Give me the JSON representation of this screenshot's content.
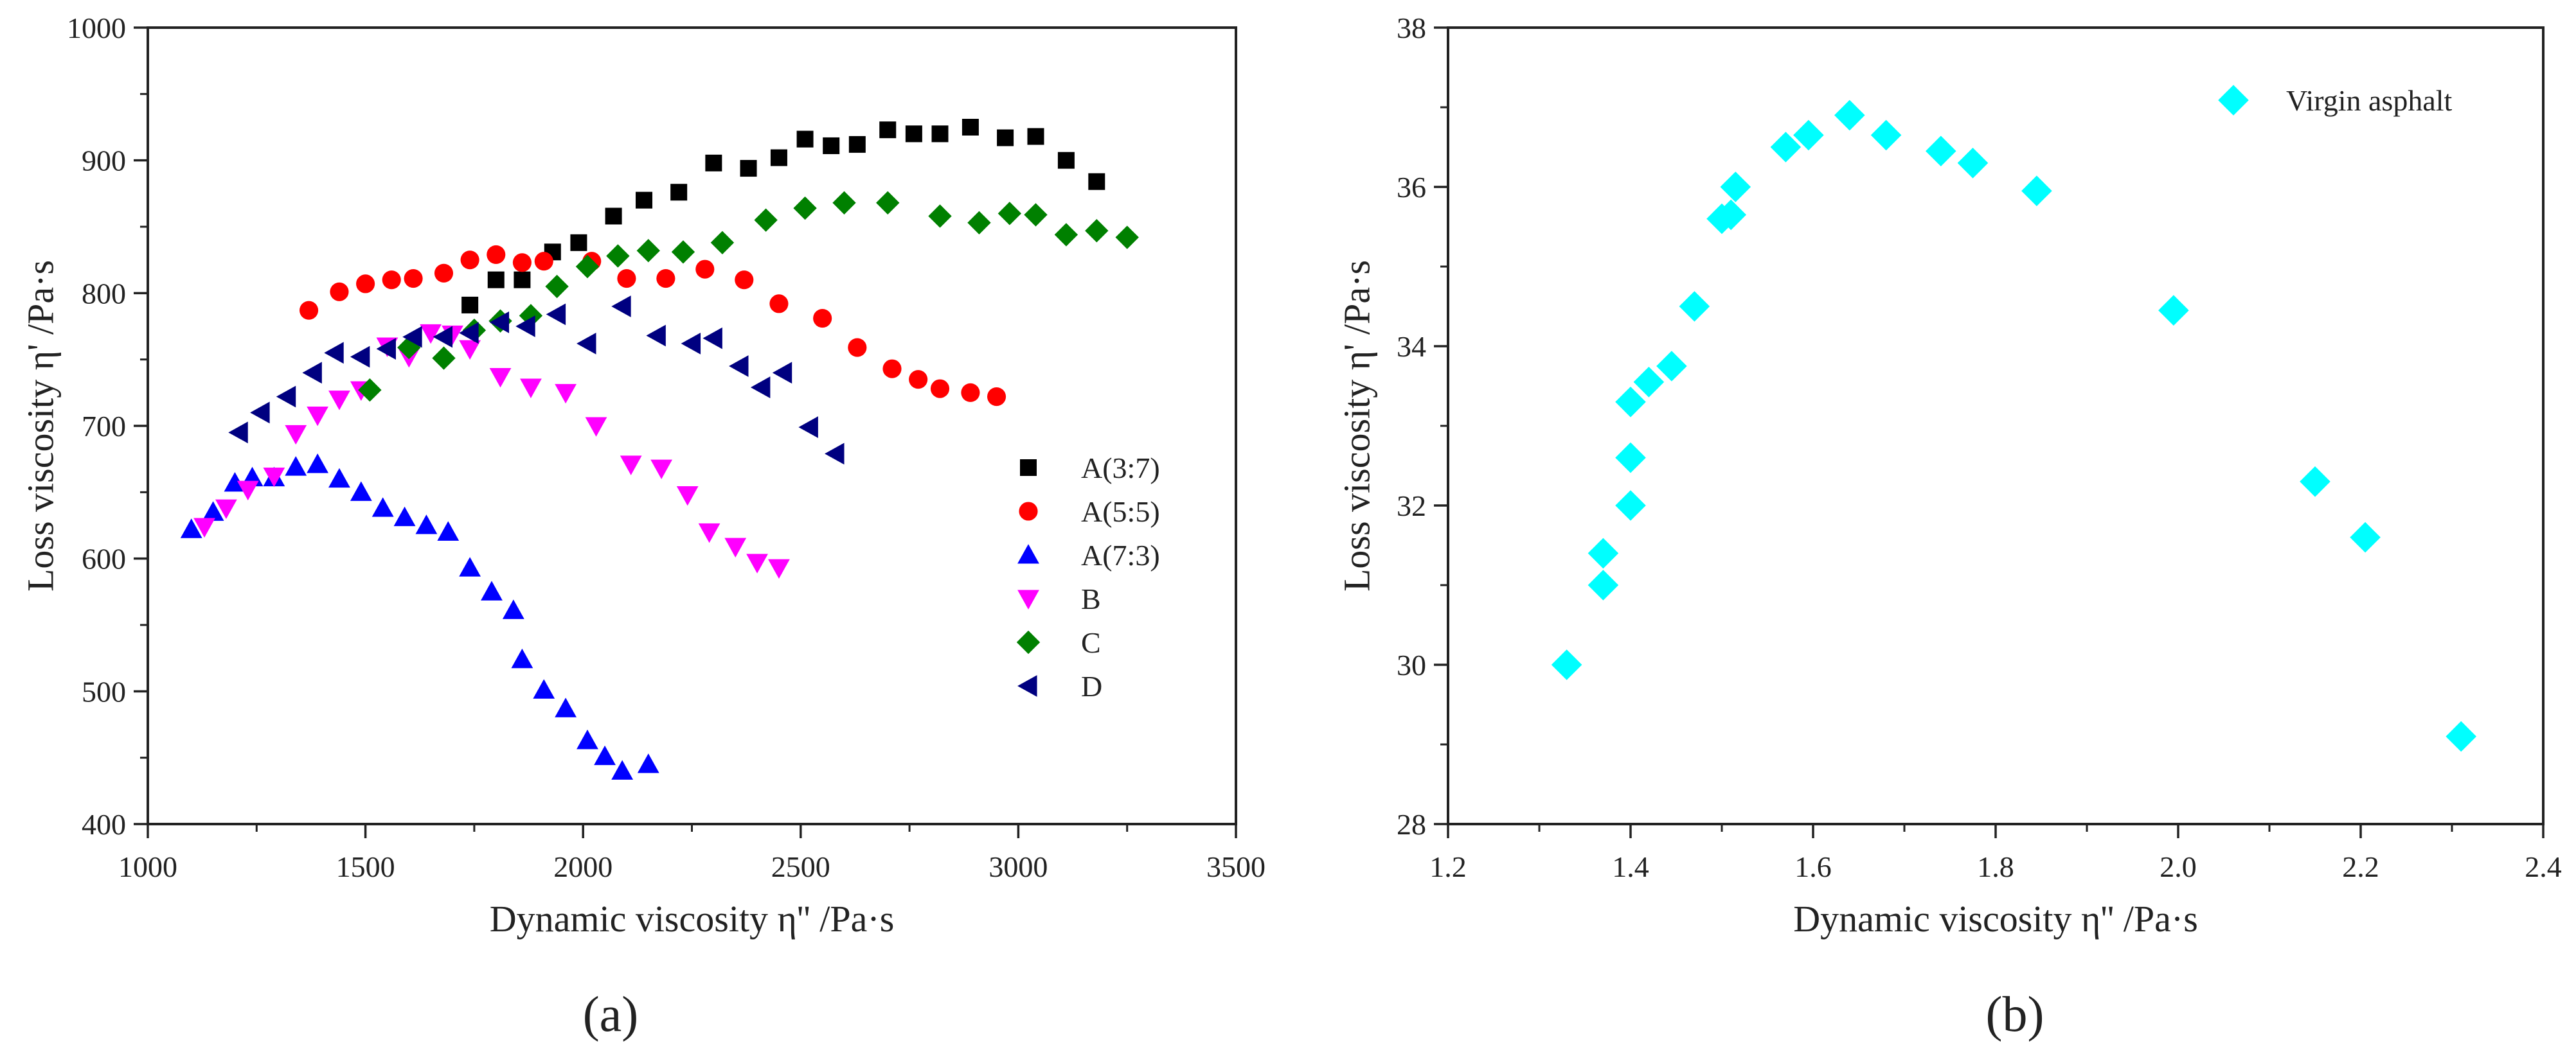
{
  "chart_data": [
    {
      "type": "scatter",
      "panel_label": "(a)",
      "xlabel": "Dynamic viscosity η'' /Pa·s",
      "ylabel": "Loss viscosity η' /Pa·s",
      "xlim": [
        1000,
        3500
      ],
      "ylim": [
        400,
        1000
      ],
      "xticks": [
        1000,
        1500,
        2000,
        2500,
        3000,
        3500
      ],
      "yticks": [
        400,
        500,
        600,
        700,
        800,
        900,
        1000
      ],
      "legend_position": "right",
      "series": [
        {
          "name": "A(3:7)",
          "marker": "square",
          "color": "#000000",
          "x": [
            1740,
            1800,
            1860,
            1930,
            1990,
            2070,
            2140,
            2220,
            2300,
            2380,
            2450,
            2510,
            2570,
            2630,
            2700,
            2760,
            2820,
            2890,
            2970,
            3040,
            3110,
            3180
          ],
          "y": [
            791,
            810,
            810,
            831,
            838,
            858,
            870,
            876,
            898,
            894,
            902,
            916,
            911,
            912,
            923,
            920,
            920,
            925,
            917,
            918,
            900,
            884
          ]
        },
        {
          "name": "A(5:5)",
          "marker": "circle",
          "color": "#ff0000",
          "x": [
            1370,
            1440,
            1500,
            1560,
            1610,
            1680,
            1740,
            1800,
            1860,
            1910,
            2020,
            2100,
            2190,
            2280,
            2370,
            2450,
            2550,
            2630,
            2710,
            2770,
            2820,
            2890,
            2950
          ],
          "y": [
            787,
            801,
            807,
            810,
            811,
            815,
            825,
            829,
            823,
            824,
            824,
            811,
            811,
            818,
            810,
            792,
            781,
            759,
            743,
            735,
            728,
            725,
            722
          ]
        },
        {
          "name": "A(7:3)",
          "marker": "triangle-up",
          "color": "#0000ff",
          "x": [
            1100,
            1150,
            1200,
            1240,
            1290,
            1340,
            1390,
            1440,
            1490,
            1540,
            1590,
            1640,
            1690,
            1740,
            1790,
            1840,
            1860,
            1910,
            1960,
            2010,
            2050,
            2090,
            2150
          ],
          "y": [
            622,
            635,
            657,
            661,
            661,
            669,
            671,
            660,
            650,
            638,
            631,
            625,
            620,
            593,
            575,
            561,
            524,
            501,
            487,
            463,
            451,
            440,
            445
          ]
        },
        {
          "name": "B",
          "marker": "triangle-down",
          "color": "#ff00ff",
          "x": [
            1130,
            1180,
            1230,
            1290,
            1340,
            1390,
            1440,
            1490,
            1550,
            1600,
            1650,
            1700,
            1740,
            1810,
            1880,
            1960,
            2030,
            2110,
            2180,
            2240,
            2290,
            2350,
            2400,
            2450
          ],
          "y": [
            624,
            638,
            652,
            662,
            694,
            708,
            720,
            727,
            760,
            752,
            770,
            769,
            758,
            737,
            729,
            725,
            700,
            671,
            668,
            648,
            620,
            609,
            597,
            593
          ]
        },
        {
          "name": "C",
          "marker": "diamond",
          "color": "#008000",
          "x": [
            1510,
            1600,
            1680,
            1750,
            1810,
            1880,
            1940,
            2010,
            2080,
            2150,
            2230,
            2320,
            2420,
            2510,
            2600,
            2700,
            2820,
            2910,
            2980,
            3040,
            3110,
            3180,
            3250
          ],
          "y": [
            727,
            759,
            751,
            772,
            779,
            783,
            805,
            820,
            828,
            832,
            831,
            838,
            855,
            864,
            868,
            868,
            858,
            853,
            860,
            859,
            844,
            847,
            842
          ]
        },
        {
          "name": "D",
          "marker": "triangle-left",
          "color": "#000080",
          "x": [
            1210,
            1260,
            1320,
            1380,
            1430,
            1490,
            1550,
            1610,
            1680,
            1740,
            1810,
            1870,
            1940,
            2010,
            2090,
            2170,
            2250,
            2300,
            2360,
            2410,
            2460,
            2520,
            2580
          ],
          "y": [
            695,
            710,
            722,
            740,
            755,
            752,
            758,
            767,
            767,
            770,
            778,
            775,
            784,
            762,
            790,
            768,
            762,
            766,
            745,
            729,
            740,
            699,
            679
          ]
        }
      ]
    },
    {
      "type": "scatter",
      "panel_label": "(b)",
      "xlabel": "Dynamic viscosity η'' /Pa·s",
      "ylabel": "Loss viscosity η' /Pa·s",
      "xlim": [
        1.2,
        2.4
      ],
      "ylim": [
        28,
        38
      ],
      "xticks": [
        "1.2",
        "1.4",
        "1.6",
        "1.8",
        "2.0",
        "2.2",
        "2.4"
      ],
      "yticks": [
        "28",
        "30",
        "32",
        "34",
        "36",
        "38"
      ],
      "legend_position": "top-right",
      "series": [
        {
          "name": "Virgin asphalt",
          "marker": "diamond",
          "color": "#00ffff",
          "x": [
            1.33,
            1.37,
            1.37,
            1.4,
            1.4,
            1.4,
            1.42,
            1.445,
            1.47,
            1.5,
            1.51,
            1.515,
            1.57,
            1.595,
            1.64,
            1.68,
            1.74,
            1.775,
            1.845,
            1.995,
            2.15,
            2.205,
            2.31
          ],
          "y": [
            30.0,
            31.0,
            31.4,
            32.0,
            32.6,
            33.3,
            33.55,
            33.75,
            34.5,
            35.6,
            35.65,
            36.0,
            36.5,
            36.65,
            36.9,
            36.65,
            36.45,
            36.3,
            35.95,
            34.45,
            32.3,
            31.6,
            29.1
          ]
        }
      ]
    }
  ]
}
